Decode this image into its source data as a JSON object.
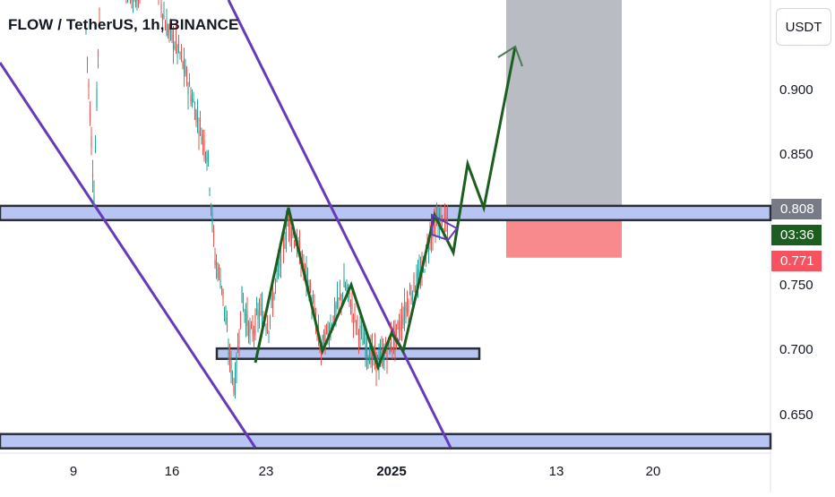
{
  "header": {
    "title": "FLOW / TetherUS, 1h, BINANCE",
    "currency_label": "USDT"
  },
  "price_tags": {
    "last_price": "0.808",
    "countdown": "03:36",
    "stop_price": "0.771"
  },
  "colors": {
    "last_price_tag": "#787b86",
    "countdown_tag": "#1b5e20",
    "stop_tag": "#f7525f",
    "channel_line": "#673ab7",
    "zone_fill": "#b8c5f2",
    "projection_line": "#1b5e20",
    "target_box": "#b2b5be",
    "stop_box": "#f77c80"
  },
  "chart_data": {
    "type": "candlestick",
    "symbol": "FLOW / TetherUS",
    "timeframe": "1h",
    "exchange": "BINANCE",
    "y_ticks": [
      "0.900",
      "0.850",
      "0.750",
      "0.700",
      "0.650"
    ],
    "x_ticks": [
      "9",
      "16",
      "23",
      "2025",
      "13",
      "20"
    ],
    "horizontal_zones": [
      {
        "name": "resistance",
        "low": 0.8,
        "high": 0.811
      },
      {
        "name": "support-mid",
        "low": 0.693,
        "high": 0.701
      },
      {
        "name": "support-low",
        "low": 0.624,
        "high": 0.635
      }
    ],
    "projection_path": [
      {
        "day": 9.5,
        "price": 0.795
      },
      {
        "day": 26,
        "price": 0.76
      }
    ],
    "position": {
      "entry": 0.808,
      "target": 0.985,
      "stop": 0.771
    }
  }
}
